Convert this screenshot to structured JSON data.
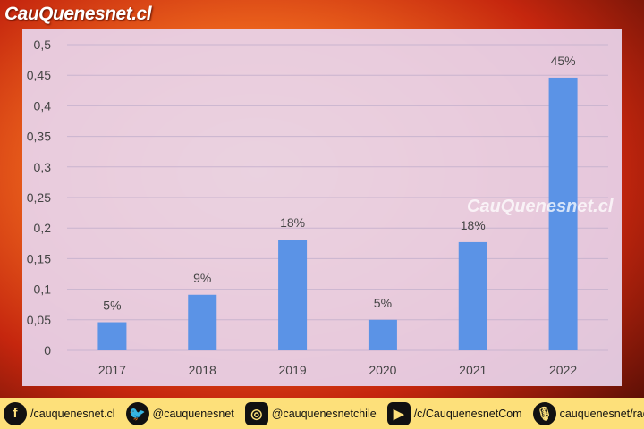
{
  "logo": "CauQuenesnet.cl",
  "watermark": "CauQuenesnet.cl",
  "chart_data": {
    "type": "bar",
    "categories": [
      "2017",
      "2018",
      "2019",
      "2020",
      "2021",
      "2022"
    ],
    "values": [
      0.046,
      0.091,
      0.181,
      0.05,
      0.177,
      0.446
    ],
    "data_labels": [
      "5%",
      "9%",
      "18%",
      "5%",
      "18%",
      "45%"
    ],
    "ylim": [
      0,
      0.5
    ],
    "yticks": [
      "0",
      "0,05",
      "0,1",
      "0,15",
      "0,2",
      "0,25",
      "0,3",
      "0,35",
      "0,4",
      "0,45",
      "0,5"
    ],
    "grid": true,
    "bar_color": "#5b93e6",
    "title": "",
    "xlabel": "",
    "ylabel": ""
  },
  "footer": {
    "facebook": "/cauquenesnet.cl",
    "twitter": "@cauquenesnet",
    "instagram": "@cauquenesnetchile",
    "youtube": "/c/CauquenesnetCom",
    "radio": "cauquenesnet/radio"
  }
}
